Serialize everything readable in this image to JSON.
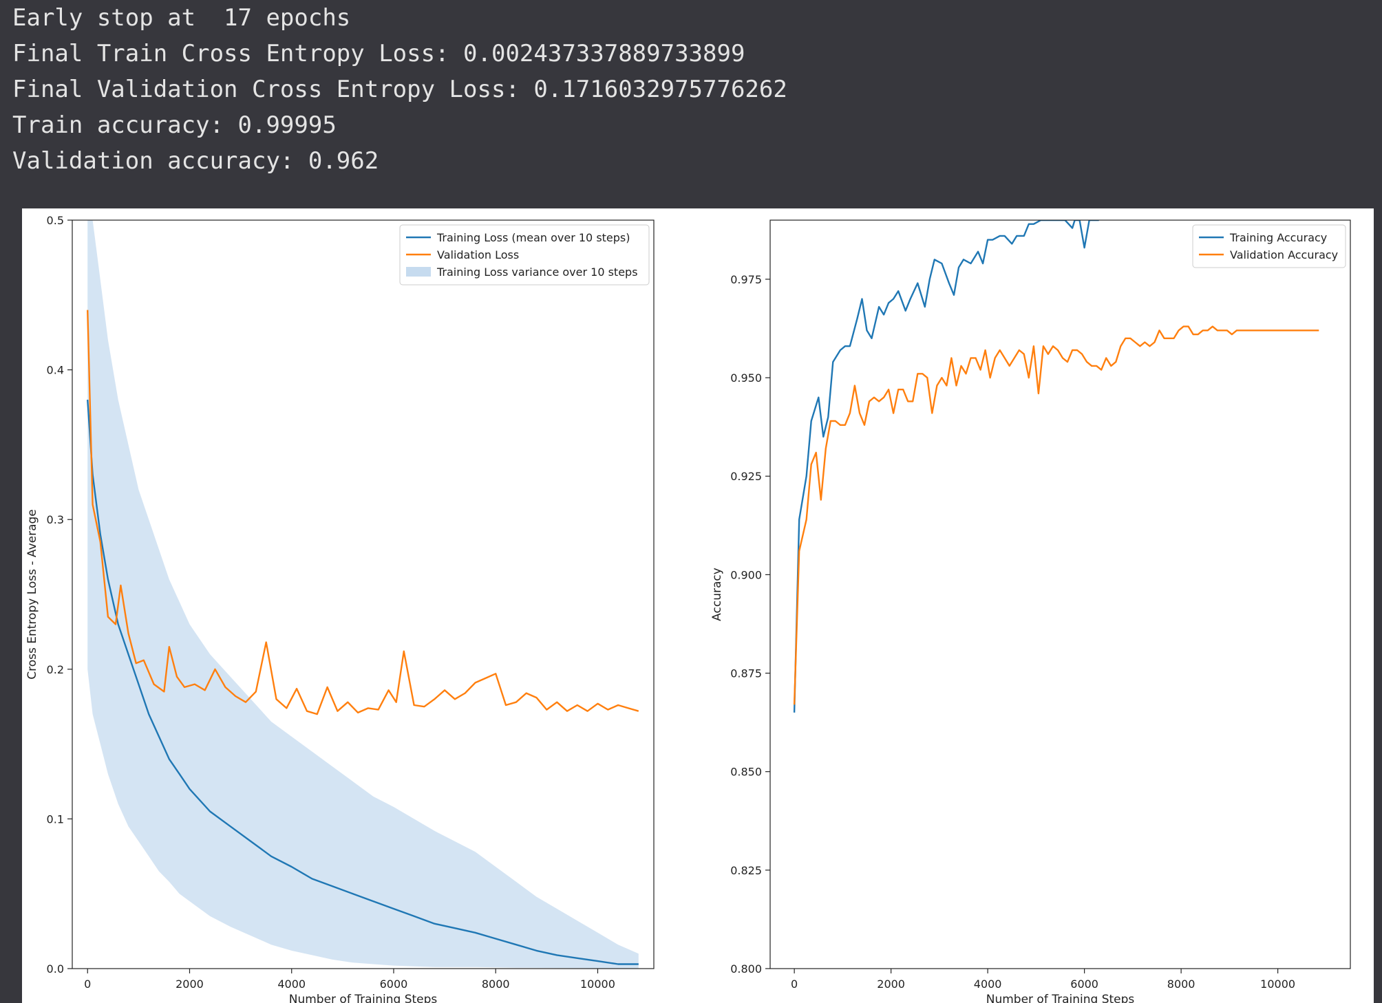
{
  "console": {
    "lines": [
      "Early stop at  17 epochs",
      "Final Train Cross Entropy Loss: 0.002437337889733899",
      "Final Validation Cross Entropy Loss: 0.1716032975776262",
      "Train accuracy: 0.99995",
      "Validation accuracy: 0.962"
    ]
  },
  "colors": {
    "background": "#37373d",
    "text": "#e4e4e4",
    "training": "#1f77b4",
    "validation": "#ff7f0e",
    "variance": "#c6dbef"
  },
  "chart_data": [
    {
      "type": "line",
      "title": "",
      "xlabel": "Number of Training Steps",
      "ylabel": "Cross Entropy Loss - Average",
      "xlim": [
        -300,
        11100
      ],
      "ylim": [
        0,
        0.5
      ],
      "xticks": [
        0,
        2000,
        4000,
        6000,
        8000,
        10000
      ],
      "xtick_labels": [
        "0",
        "2000",
        "4000",
        "6000",
        "8000",
        "10000"
      ],
      "yticks": [
        0.0,
        0.1,
        0.2,
        0.3,
        0.4,
        0.5
      ],
      "ytick_labels": [
        "0.0",
        "0.1",
        "0.2",
        "0.3",
        "0.4",
        "0.5"
      ],
      "grid": false,
      "legend_position": "upper-right",
      "legend": [
        "Training Loss (mean over 10 steps)",
        "Validation Loss",
        "Training Loss variance over 10 steps"
      ],
      "series": [
        {
          "name": "Training Loss (mean over 10 steps)",
          "style": "line",
          "color": "#1f77b4",
          "x": [
            0,
            100,
            250,
            400,
            600,
            800,
            1000,
            1200,
            1400,
            1600,
            1800,
            2000,
            2400,
            2800,
            3200,
            3600,
            4000,
            4400,
            4800,
            5200,
            5600,
            6000,
            6400,
            6800,
            7200,
            7600,
            8000,
            8400,
            8800,
            9200,
            9600,
            10000,
            10400,
            10800
          ],
          "y": [
            0.38,
            0.33,
            0.29,
            0.26,
            0.23,
            0.21,
            0.19,
            0.17,
            0.155,
            0.14,
            0.13,
            0.12,
            0.105,
            0.095,
            0.085,
            0.075,
            0.068,
            0.06,
            0.055,
            0.05,
            0.045,
            0.04,
            0.035,
            0.03,
            0.027,
            0.024,
            0.02,
            0.016,
            0.012,
            0.009,
            0.007,
            0.005,
            0.003,
            0.003
          ]
        },
        {
          "name": "Validation Loss",
          "style": "line",
          "color": "#ff7f0e",
          "x": [
            0,
            100,
            250,
            400,
            550,
            650,
            800,
            950,
            1100,
            1300,
            1500,
            1600,
            1750,
            1900,
            2100,
            2300,
            2500,
            2700,
            2900,
            3100,
            3300,
            3500,
            3700,
            3900,
            4100,
            4300,
            4500,
            4700,
            4900,
            5100,
            5300,
            5500,
            5700,
            5900,
            6050,
            6200,
            6400,
            6600,
            6800,
            7000,
            7200,
            7400,
            7600,
            7800,
            8000,
            8200,
            8400,
            8600,
            8800,
            9000,
            9200,
            9400,
            9600,
            9800,
            10000,
            10200,
            10400,
            10600,
            10800
          ],
          "y": [
            0.44,
            0.31,
            0.285,
            0.235,
            0.23,
            0.256,
            0.224,
            0.204,
            0.206,
            0.19,
            0.185,
            0.215,
            0.195,
            0.188,
            0.19,
            0.186,
            0.2,
            0.188,
            0.182,
            0.178,
            0.185,
            0.218,
            0.18,
            0.174,
            0.187,
            0.172,
            0.17,
            0.188,
            0.172,
            0.178,
            0.171,
            0.174,
            0.173,
            0.186,
            0.178,
            0.212,
            0.176,
            0.175,
            0.18,
            0.186,
            0.18,
            0.184,
            0.191,
            0.194,
            0.197,
            0.176,
            0.178,
            0.184,
            0.181,
            0.173,
            0.178,
            0.172,
            0.176,
            0.172,
            0.177,
            0.173,
            0.176,
            0.174,
            0.172
          ]
        },
        {
          "name": "Training Loss variance over 10 steps",
          "style": "band",
          "color": "#c6dbef",
          "x": [
            0,
            100,
            250,
            400,
            600,
            800,
            1000,
            1200,
            1400,
            1600,
            1800,
            2000,
            2400,
            2800,
            3200,
            3600,
            4000,
            4400,
            4800,
            5200,
            5600,
            6000,
            6400,
            6800,
            7200,
            7600,
            8000,
            8400,
            8800,
            9200,
            9600,
            10000,
            10400,
            10800
          ],
          "low": [
            0.2,
            0.17,
            0.15,
            0.13,
            0.11,
            0.095,
            0.085,
            0.075,
            0.065,
            0.058,
            0.05,
            0.045,
            0.035,
            0.028,
            0.022,
            0.016,
            0.012,
            0.009,
            0.006,
            0.004,
            0.003,
            0.002,
            0.0015,
            0.001,
            0.001,
            0.001,
            0.0008,
            0.0006,
            0.0005,
            0.0004,
            0.0003,
            0.0002,
            0.0002,
            0.0002
          ],
          "high": [
            0.5,
            0.5,
            0.46,
            0.42,
            0.38,
            0.35,
            0.32,
            0.3,
            0.28,
            0.26,
            0.245,
            0.23,
            0.21,
            0.195,
            0.18,
            0.165,
            0.155,
            0.145,
            0.135,
            0.125,
            0.115,
            0.108,
            0.1,
            0.092,
            0.085,
            0.078,
            0.068,
            0.058,
            0.048,
            0.04,
            0.032,
            0.024,
            0.016,
            0.01
          ]
        }
      ]
    },
    {
      "type": "line",
      "title": "",
      "xlabel": "Number of Training Steps",
      "ylabel": "Accuracy",
      "xlim": [
        -500,
        11500
      ],
      "ylim": [
        0.8,
        0.99
      ],
      "xticks": [
        0,
        2000,
        4000,
        6000,
        8000,
        10000
      ],
      "xtick_labels": [
        "0",
        "2000",
        "4000",
        "6000",
        "8000",
        "10000"
      ],
      "yticks": [
        0.8,
        0.825,
        0.85,
        0.875,
        0.9,
        0.925,
        0.95,
        0.975
      ],
      "ytick_labels": [
        "0.800",
        "0.825",
        "0.850",
        "0.875",
        "0.900",
        "0.925",
        "0.950",
        "0.975"
      ],
      "grid": false,
      "legend_position": "upper-right",
      "legend": [
        "Training Accuracy",
        "Validation Accuracy"
      ],
      "series": [
        {
          "name": "Training Accuracy",
          "style": "line",
          "color": "#1f77b4",
          "x": [
            0,
            100,
            250,
            350,
            500,
            600,
            700,
            800,
            950,
            1050,
            1150,
            1300,
            1400,
            1500,
            1600,
            1750,
            1850,
            1950,
            2050,
            2150,
            2300,
            2400,
            2550,
            2700,
            2800,
            2900,
            3050,
            3200,
            3300,
            3400,
            3500,
            3650,
            3800,
            3900,
            4000,
            4100,
            4250,
            4350,
            4500,
            4600,
            4750,
            4850,
            4950,
            5100,
            5250,
            5400,
            5500,
            5600,
            5750,
            5800,
            5900,
            6000,
            6100,
            6200,
            6300
          ],
          "y": [
            0.865,
            0.914,
            0.925,
            0.939,
            0.945,
            0.935,
            0.94,
            0.954,
            0.957,
            0.958,
            0.958,
            0.965,
            0.97,
            0.962,
            0.96,
            0.968,
            0.966,
            0.969,
            0.97,
            0.972,
            0.967,
            0.97,
            0.974,
            0.968,
            0.975,
            0.98,
            0.979,
            0.974,
            0.971,
            0.978,
            0.98,
            0.979,
            0.982,
            0.979,
            0.985,
            0.985,
            0.986,
            0.986,
            0.984,
            0.986,
            0.986,
            0.989,
            0.989,
            0.99,
            0.99,
            0.99,
            0.99,
            0.99,
            0.988,
            0.99,
            0.99,
            0.983,
            0.99,
            0.99,
            0.99
          ]
        },
        {
          "name": "Validation Accuracy",
          "style": "line",
          "color": "#ff7f0e",
          "x": [
            0,
            100,
            250,
            350,
            450,
            550,
            650,
            750,
            850,
            950,
            1050,
            1150,
            1250,
            1350,
            1450,
            1550,
            1650,
            1750,
            1850,
            1950,
            2050,
            2150,
            2250,
            2350,
            2450,
            2550,
            2650,
            2750,
            2850,
            2950,
            3050,
            3150,
            3250,
            3350,
            3450,
            3550,
            3650,
            3750,
            3850,
            3950,
            4050,
            4150,
            4250,
            4350,
            4450,
            4550,
            4650,
            4750,
            4850,
            4950,
            5050,
            5150,
            5250,
            5350,
            5450,
            5550,
            5650,
            5750,
            5850,
            5950,
            6050,
            6150,
            6250,
            6350,
            6450,
            6550,
            6650,
            6750,
            6850,
            6950,
            7050,
            7150,
            7250,
            7350,
            7450,
            7550,
            7650,
            7750,
            7850,
            7950,
            8050,
            8150,
            8250,
            8350,
            8450,
            8550,
            8650,
            8750,
            8850,
            8950,
            9050,
            9150,
            9250,
            9350,
            9450,
            9550,
            9650,
            9750,
            9850,
            9950,
            10050,
            10150,
            10250,
            10350,
            10450,
            10550,
            10650,
            10750,
            10850
          ],
          "y": [
            0.867,
            0.906,
            0.914,
            0.928,
            0.931,
            0.919,
            0.932,
            0.939,
            0.939,
            0.938,
            0.938,
            0.941,
            0.948,
            0.941,
            0.938,
            0.944,
            0.945,
            0.944,
            0.945,
            0.947,
            0.941,
            0.947,
            0.947,
            0.944,
            0.944,
            0.951,
            0.951,
            0.95,
            0.941,
            0.948,
            0.95,
            0.948,
            0.955,
            0.948,
            0.953,
            0.951,
            0.955,
            0.955,
            0.952,
            0.957,
            0.95,
            0.955,
            0.957,
            0.955,
            0.953,
            0.955,
            0.957,
            0.956,
            0.95,
            0.958,
            0.946,
            0.958,
            0.956,
            0.958,
            0.957,
            0.955,
            0.954,
            0.957,
            0.957,
            0.956,
            0.954,
            0.953,
            0.953,
            0.952,
            0.955,
            0.953,
            0.954,
            0.958,
            0.96,
            0.96,
            0.959,
            0.958,
            0.959,
            0.958,
            0.959,
            0.962,
            0.96,
            0.96,
            0.96,
            0.962,
            0.963,
            0.963,
            0.961,
            0.961,
            0.962,
            0.962,
            0.963,
            0.962,
            0.962,
            0.962,
            0.961,
            0.962,
            0.962,
            0.962,
            0.962,
            0.962,
            0.962,
            0.962,
            0.962,
            0.962,
            0.962,
            0.962,
            0.962,
            0.962,
            0.962,
            0.962,
            0.962,
            0.962,
            0.962
          ]
        }
      ]
    }
  ]
}
